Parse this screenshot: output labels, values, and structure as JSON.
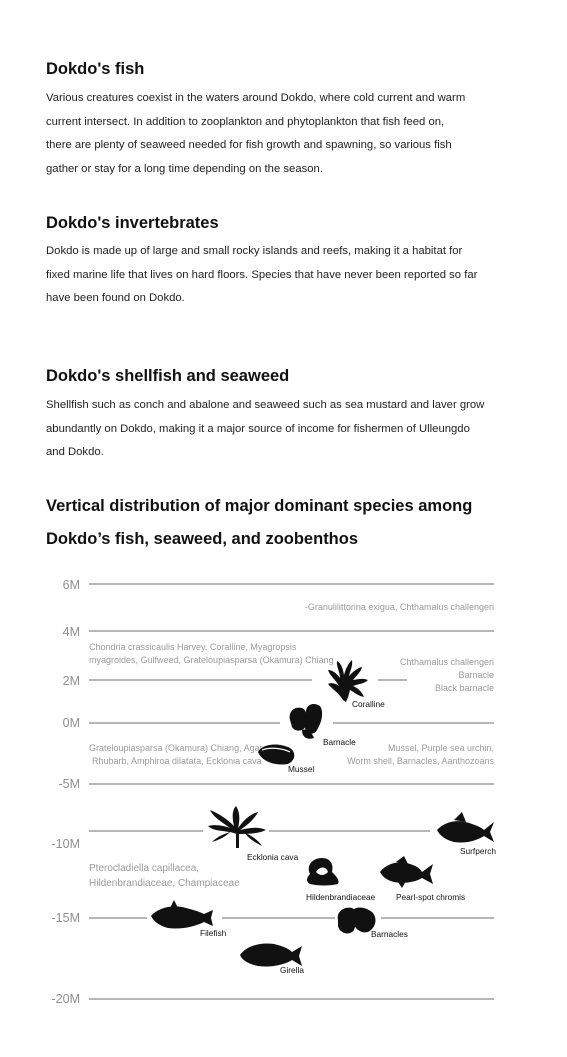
{
  "sections": [
    {
      "title": "Dokdo's fish",
      "lines": [
        "Various creatures coexist in the waters around Dokdo, where  cold current and warm",
        "current intersect. In addition to zooplankton and phytoplankton that fish feed on,",
        "there are plenty of seaweed needed  for fish growth and spawning, so various fish",
        "gather or stay for a long time depending on the season."
      ]
    },
    {
      "title": "Dokdo's invertebrates",
      "lines": [
        "Dokdo is made up of large and small rocky islands and reefs, making it a habitat for",
        "fixed marine life that lives on hard floors. Species that have never been  reported so far",
        "have been found on Dokdo."
      ]
    },
    {
      "title": "Dokdo's shellfish and seaweed",
      "lines": [
        "Shellfish such as conch and abalone and seaweed such as sea mustard and laver grow",
        "abundantly on Dokdo, making it a major source of income for fishermen of Ulleungdo",
        "and Dokdo."
      ]
    }
  ],
  "diagram_title": [
    "Vertical distribution of major dominant species among",
    "Dokdo’s fish, seaweed, and zoobenthos"
  ],
  "diagram": {
    "depth_levels": [
      "6M",
      "4M",
      "2M",
      "0M",
      "-5M",
      "-10M",
      "-15M",
      "-20M"
    ],
    "group_notes": {
      "granulilittorina": "-Granulilittorina exigua, Chthamalus challengeri",
      "chondria_1": "Chondria crassicaulis Harvey, Coralline, Myagropsis",
      "chondria_2": "myagroides,  Gulfweed, Grateloupiasparsa (Okamura) Chiang",
      "chthamalus_1": "Chthamalus challengeri",
      "chthamalus_2": "Barnacle",
      "chthamalus_3": "Black barnacle",
      "grateloupia_1": "Grateloupiasparsa (Okamura) Chiang, Agar,",
      "grateloupia_2": "Rhubarb, Amphiroa dilatata, Ecklonia cava",
      "mussel_1": "Mussel, Purple sea urchin,",
      "mussel_2": "Worm shell, Barnacles, Aanthozoans",
      "ptero_1": "Pterocladiella capillacea,",
      "ptero_2": "Hildenbrandiaceae, Champiaceae"
    },
    "species": {
      "coralline": "Coralline",
      "barnacle": "Barnacle",
      "mussel": "Mussel",
      "ecklonia": "Ecklonia cava",
      "surfperch": "Surfperch",
      "hildenbrandiaceae": "Hildenbrandiaceae",
      "pearl_spot": "Pearl-spot chromis",
      "filefish": "Filefish",
      "barnacles": "Barnacles",
      "girella": "Girella"
    }
  }
}
